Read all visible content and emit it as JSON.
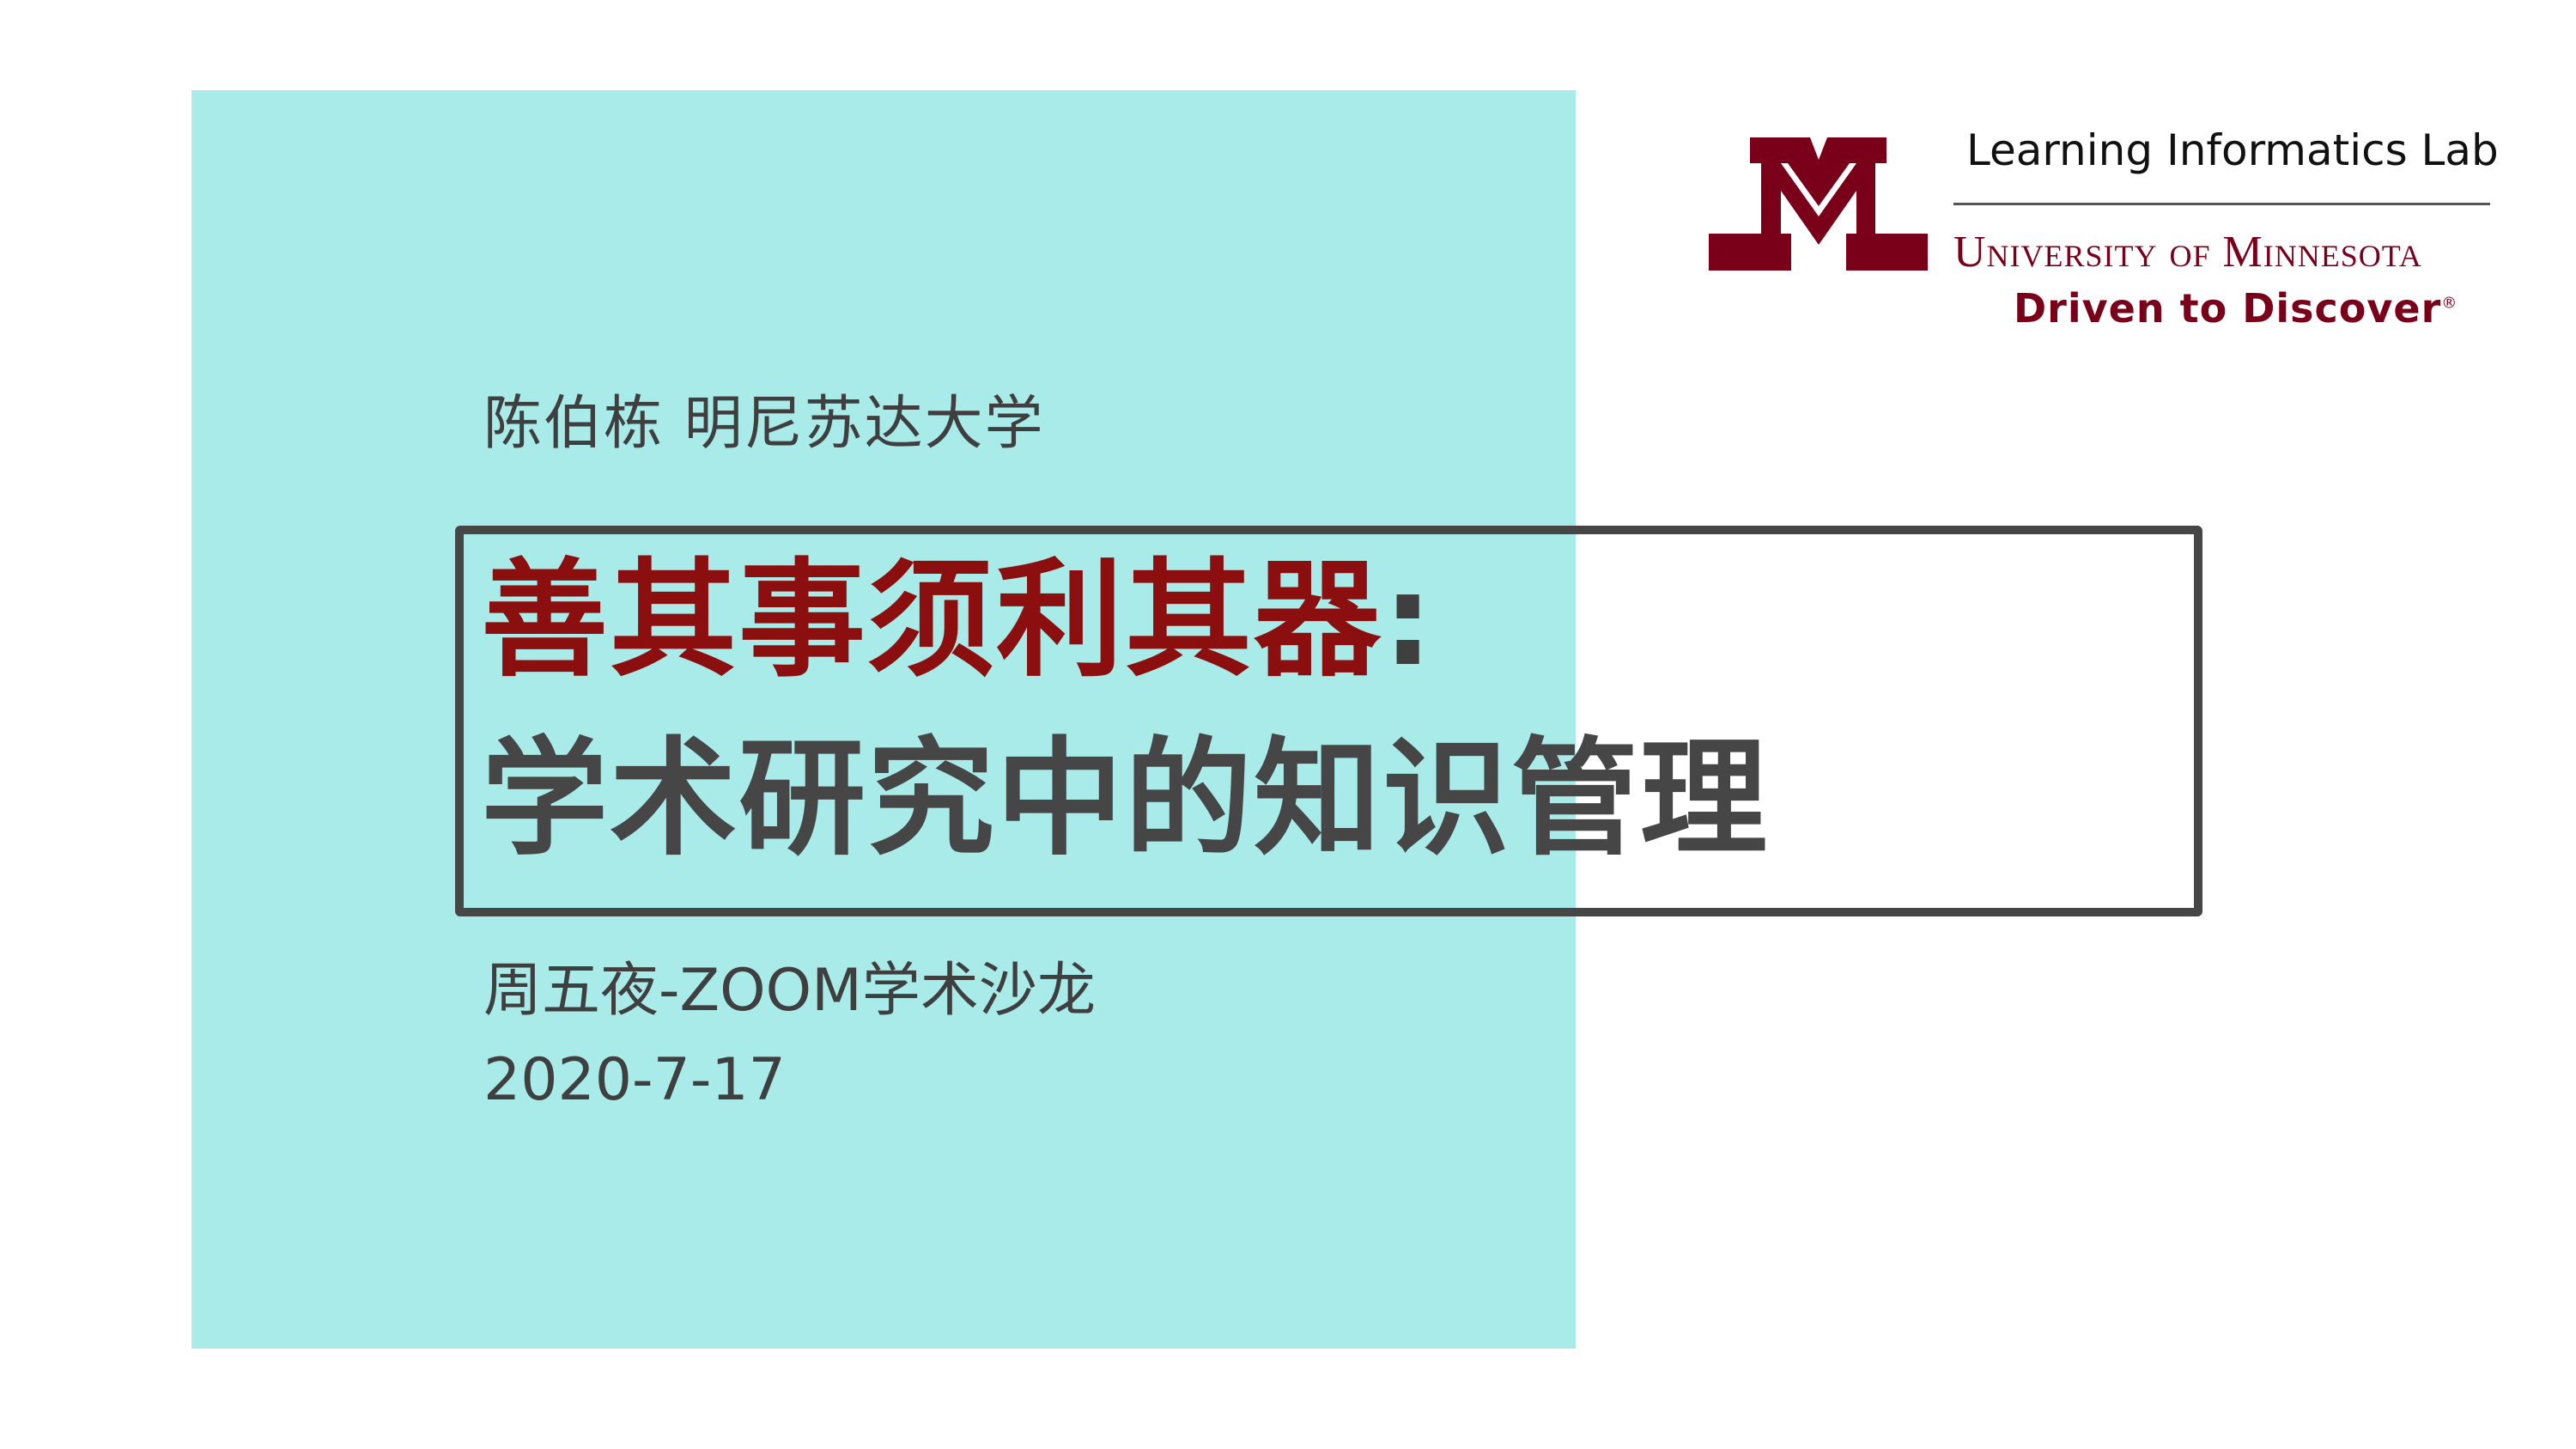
{
  "slide": {
    "author": "陈伯栋 明尼苏达大学",
    "title_line_1": "善其事须利其器",
    "title_colon": ":",
    "title_line_2": "学术研究中的知识管理",
    "event": "周五夜-ZOOM学术沙龙",
    "date": "2020-7-17"
  },
  "logo": {
    "icon": "university-m-logo-icon",
    "lab_name": "Learning Informatics Lab",
    "university": "University of Minnesota",
    "tagline": "Driven to Discover",
    "registered_mark": "®"
  },
  "colors": {
    "teal_block": "#a8ebe9",
    "title_red": "#8b0f0f",
    "text_gray": "#3f3f3f",
    "frame_gray": "#464646",
    "maroon": "#7a0019"
  }
}
